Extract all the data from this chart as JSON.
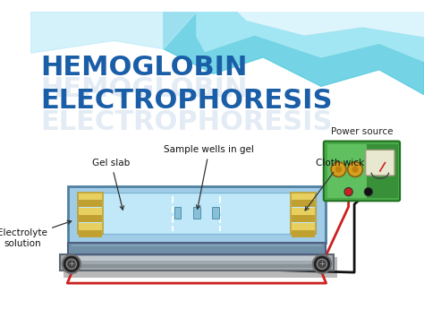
{
  "title_line1": "HEMOGLOBIN",
  "title_line2": "ELECTROPHORESIS",
  "title_color": "#1A5EA8",
  "labels": {
    "electrolyte": "Electrolyte\nsolution",
    "gel_slab": "Gel slab",
    "sample_wells": "Sample wells in gel",
    "cloth_wick": "Cloth wick",
    "power_source": "Power source"
  },
  "apparatus": {
    "tray_color": "#A8D4F0",
    "tray_edge_color": "#6090B0",
    "gel_color": "#B8E0F8",
    "wick_color": "#E8D060",
    "wick_edge": "#C0A030",
    "metal_top": "#C8D0D8",
    "metal_mid": "#A0A8B0",
    "metal_bot": "#808890",
    "base_dark": "#606870",
    "power_box_green": "#4AAA4A",
    "power_box_light": "#60C060",
    "dial_color": "#E8E8D0",
    "knob_color": "#D4A020",
    "wire_red": "#CC2020",
    "wire_black": "#111111"
  }
}
